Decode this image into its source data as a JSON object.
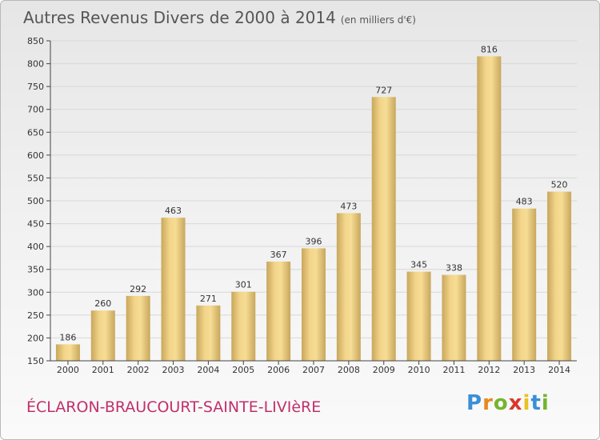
{
  "title": "Autres Revenus Divers de 2000 à 2014",
  "unit": "(en milliers d'€)",
  "commune": "ÉCLARON-BRAUCOURT-SAINTE-LIVIèRE",
  "logo": {
    "p": "P",
    "r": "r",
    "o": "o",
    "x": "x",
    "i": "i",
    "t": "t",
    "i2": "i"
  },
  "colors": {
    "bar_light": "#f6dc94",
    "bar_dark": "#c8a75c",
    "grid": "#d8d8d8",
    "axis": "#444444",
    "commune": "#c0306a"
  },
  "chart_data": {
    "type": "bar",
    "categories": [
      "2000",
      "2001",
      "2002",
      "2003",
      "2004",
      "2005",
      "2006",
      "2007",
      "2008",
      "2009",
      "2010",
      "2011",
      "2012",
      "2013",
      "2014"
    ],
    "values": [
      186,
      260,
      292,
      463,
      271,
      301,
      367,
      396,
      473,
      727,
      345,
      338,
      816,
      483,
      520
    ],
    "ylim": [
      150,
      850
    ],
    "yticks": [
      150,
      200,
      250,
      300,
      350,
      400,
      450,
      500,
      550,
      600,
      650,
      700,
      750,
      800,
      850
    ],
    "grid": true,
    "data_labels": true
  }
}
